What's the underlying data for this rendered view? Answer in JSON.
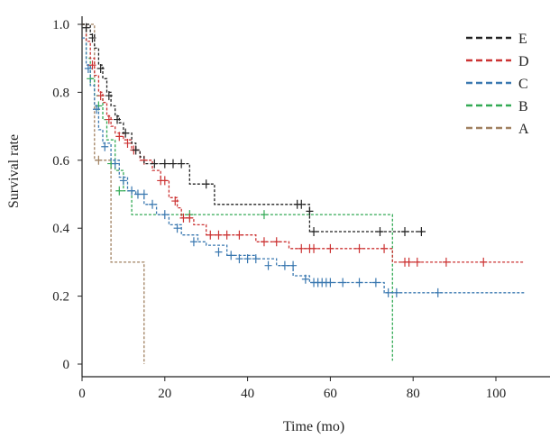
{
  "chart_data": {
    "type": "line",
    "subtype": "kaplan-meier",
    "xlabel": "Time (mo)",
    "ylabel": "Survival rate",
    "xlim": [
      0,
      108
    ],
    "ylim": [
      0,
      1.05
    ],
    "xticks": [
      0,
      20,
      40,
      60,
      80,
      100
    ],
    "yticks": [
      0,
      0.2,
      0.4,
      0.6,
      0.8,
      1.0
    ],
    "ytick_labels": [
      "0",
      "0.2",
      "0.4",
      "0.6",
      "0.8",
      "1.0"
    ],
    "grid": false,
    "legend": "top-right",
    "series": [
      {
        "name": "E",
        "color": "#222222",
        "steps": [
          [
            0,
            1.0
          ],
          [
            2,
            0.97
          ],
          [
            3,
            0.93
          ],
          [
            4,
            0.88
          ],
          [
            5,
            0.84
          ],
          [
            6,
            0.8
          ],
          [
            7,
            0.76
          ],
          [
            8,
            0.73
          ],
          [
            9,
            0.71
          ],
          [
            10,
            0.68
          ],
          [
            12,
            0.65
          ],
          [
            13,
            0.63
          ],
          [
            14,
            0.61
          ],
          [
            15,
            0.59
          ],
          [
            17,
            0.59
          ],
          [
            19,
            0.59
          ],
          [
            26,
            0.53
          ],
          [
            32,
            0.47
          ],
          [
            55,
            0.39
          ],
          [
            83,
            0.39
          ]
        ],
        "censored": [
          [
            1,
            0.99
          ],
          [
            2.5,
            0.96
          ],
          [
            4.5,
            0.87
          ],
          [
            6.5,
            0.79
          ],
          [
            8.5,
            0.72
          ],
          [
            10.5,
            0.68
          ],
          [
            13,
            0.63
          ],
          [
            17.5,
            0.59
          ],
          [
            20,
            0.59
          ],
          [
            22,
            0.59
          ],
          [
            24,
            0.59
          ],
          [
            30,
            0.53
          ],
          [
            52,
            0.47
          ],
          [
            53,
            0.47
          ],
          [
            55,
            0.45
          ],
          [
            56,
            0.39
          ],
          [
            72,
            0.39
          ],
          [
            78,
            0.39
          ],
          [
            82,
            0.39
          ]
        ]
      },
      {
        "name": "D",
        "color": "#cc3333",
        "steps": [
          [
            0,
            1.0
          ],
          [
            1,
            0.95
          ],
          [
            2,
            0.9
          ],
          [
            3,
            0.85
          ],
          [
            4,
            0.8
          ],
          [
            5,
            0.77
          ],
          [
            6,
            0.73
          ],
          [
            7,
            0.7
          ],
          [
            8,
            0.68
          ],
          [
            10,
            0.66
          ],
          [
            12,
            0.63
          ],
          [
            14,
            0.6
          ],
          [
            17,
            0.57
          ],
          [
            19,
            0.54
          ],
          [
            21,
            0.49
          ],
          [
            23,
            0.46
          ],
          [
            24,
            0.43
          ],
          [
            27,
            0.41
          ],
          [
            30,
            0.38
          ],
          [
            42,
            0.36
          ],
          [
            50,
            0.34
          ],
          [
            75,
            0.3
          ],
          [
            107,
            0.3
          ]
        ],
        "censored": [
          [
            2.5,
            0.88
          ],
          [
            4.5,
            0.79
          ],
          [
            6.5,
            0.72
          ],
          [
            9,
            0.67
          ],
          [
            11,
            0.65
          ],
          [
            12.5,
            0.63
          ],
          [
            15,
            0.6
          ],
          [
            19,
            0.54
          ],
          [
            20,
            0.54
          ],
          [
            22.5,
            0.48
          ],
          [
            24.5,
            0.43
          ],
          [
            26,
            0.43
          ],
          [
            31,
            0.38
          ],
          [
            33,
            0.38
          ],
          [
            35,
            0.38
          ],
          [
            38,
            0.38
          ],
          [
            44,
            0.36
          ],
          [
            47,
            0.36
          ],
          [
            53,
            0.34
          ],
          [
            55,
            0.34
          ],
          [
            56,
            0.34
          ],
          [
            60,
            0.34
          ],
          [
            67,
            0.34
          ],
          [
            73,
            0.34
          ],
          [
            78,
            0.3
          ],
          [
            79,
            0.3
          ],
          [
            81,
            0.3
          ],
          [
            88,
            0.3
          ],
          [
            97,
            0.3
          ]
        ]
      },
      {
        "name": "C",
        "color": "#3a78b0",
        "steps": [
          [
            0,
            0.96
          ],
          [
            1,
            0.88
          ],
          [
            2,
            0.82
          ],
          [
            3,
            0.76
          ],
          [
            4,
            0.69
          ],
          [
            5,
            0.65
          ],
          [
            7,
            0.6
          ],
          [
            9,
            0.55
          ],
          [
            11,
            0.51
          ],
          [
            13,
            0.5
          ],
          [
            15,
            0.47
          ],
          [
            18,
            0.44
          ],
          [
            21,
            0.41
          ],
          [
            24,
            0.38
          ],
          [
            28,
            0.36
          ],
          [
            30,
            0.35
          ],
          [
            35,
            0.32
          ],
          [
            42,
            0.31
          ],
          [
            47,
            0.29
          ],
          [
            51,
            0.26
          ],
          [
            55,
            0.24
          ],
          [
            62,
            0.24
          ],
          [
            73,
            0.21
          ],
          [
            107,
            0.21
          ]
        ],
        "censored": [
          [
            1.5,
            0.87
          ],
          [
            3.5,
            0.75
          ],
          [
            5.5,
            0.64
          ],
          [
            8,
            0.59
          ],
          [
            10,
            0.54
          ],
          [
            12,
            0.51
          ],
          [
            13.5,
            0.5
          ],
          [
            15,
            0.5
          ],
          [
            17,
            0.47
          ],
          [
            20,
            0.44
          ],
          [
            23,
            0.4
          ],
          [
            27,
            0.36
          ],
          [
            33,
            0.33
          ],
          [
            36,
            0.32
          ],
          [
            38,
            0.31
          ],
          [
            40,
            0.31
          ],
          [
            42,
            0.31
          ],
          [
            45,
            0.29
          ],
          [
            49,
            0.29
          ],
          [
            51,
            0.29
          ],
          [
            54,
            0.25
          ],
          [
            56,
            0.24
          ],
          [
            57,
            0.24
          ],
          [
            58,
            0.24
          ],
          [
            59,
            0.24
          ],
          [
            60,
            0.24
          ],
          [
            63,
            0.24
          ],
          [
            67,
            0.24
          ],
          [
            71,
            0.24
          ],
          [
            74,
            0.21
          ],
          [
            76,
            0.21
          ],
          [
            86,
            0.21
          ]
        ]
      },
      {
        "name": "B",
        "color": "#33aa55",
        "steps": [
          [
            0,
            1.0
          ],
          [
            1,
            0.9
          ],
          [
            2,
            0.84
          ],
          [
            3,
            0.79
          ],
          [
            5,
            0.72
          ],
          [
            6,
            0.66
          ],
          [
            8,
            0.57
          ],
          [
            10,
            0.51
          ],
          [
            12,
            0.44
          ],
          [
            75,
            0.44
          ],
          [
            75,
            0.01
          ]
        ],
        "censored": [
          [
            2,
            0.84
          ],
          [
            4,
            0.76
          ],
          [
            7,
            0.59
          ],
          [
            9,
            0.51
          ],
          [
            26,
            0.44
          ],
          [
            44,
            0.44
          ]
        ]
      },
      {
        "name": "A",
        "color": "#a08060",
        "steps": [
          [
            0,
            1.0
          ],
          [
            3,
            0.6
          ],
          [
            7,
            0.3
          ],
          [
            15,
            0.3
          ],
          [
            15,
            0.0
          ]
        ],
        "censored": [
          [
            4,
            0.6
          ]
        ]
      }
    ]
  }
}
